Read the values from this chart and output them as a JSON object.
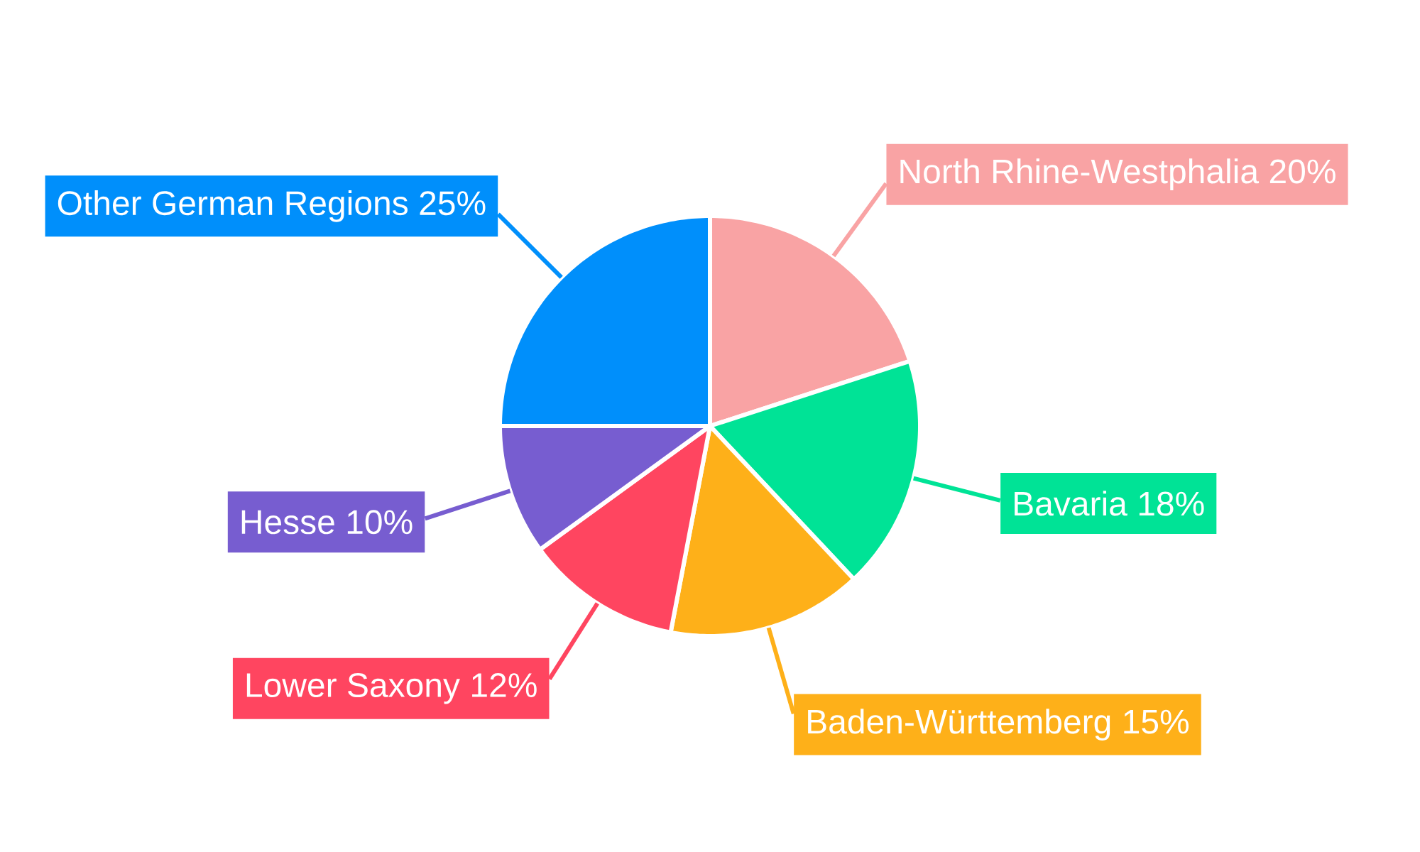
{
  "chart_data": {
    "type": "pie",
    "categories": [
      "North Rhine-Westphalia",
      "Bavaria",
      "Baden-Württemberg",
      "Lower Saxony",
      "Hesse",
      "Other German Regions"
    ],
    "values": [
      20,
      18,
      15,
      12,
      10,
      25
    ],
    "value_labels": [
      "20%",
      "18%",
      "15%",
      "12%",
      "10%",
      "25%"
    ],
    "colors": [
      "#f9a3a4",
      "#00e396",
      "#feb019",
      "#ff4560",
      "#775dd0",
      "#008ffb"
    ]
  }
}
